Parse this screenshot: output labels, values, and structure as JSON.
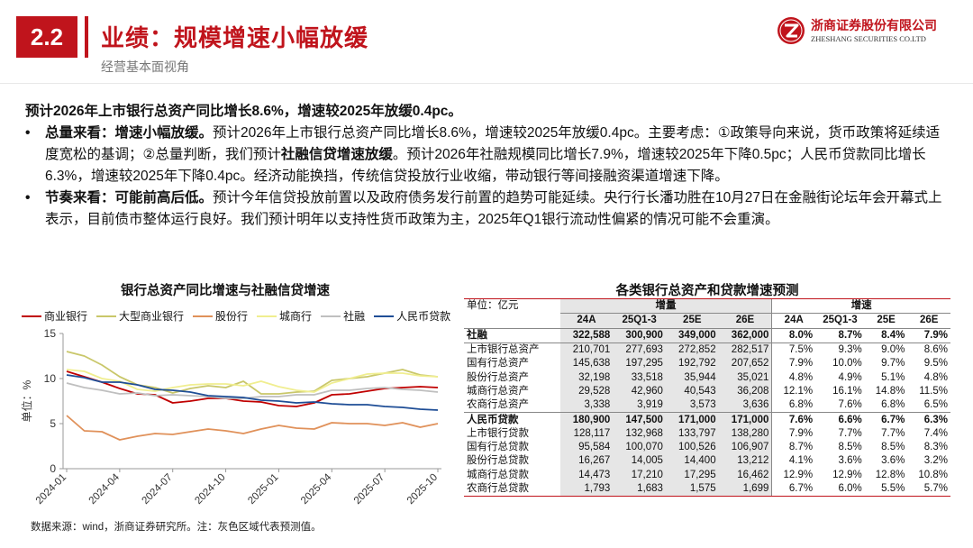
{
  "header": {
    "section_number": "2.2",
    "title": "业绩：规模增速小幅放缓",
    "subtitle": "经营基本面视角",
    "logo_cn": "浙商证券股份有限公司",
    "logo_en": "ZHESHANG SECURITIES CO.LTD"
  },
  "body": {
    "lead": "预计2026年上市银行总资产同比增长8.6%，增速较2025年放缓0.4pc。",
    "bullet1": {
      "head": "总量来看：增速小幅放缓。",
      "t1": "预计2026年上市银行总资产同比增长8.6%，增速较2025年放缓0.4pc。主要考虑：①政策导向来说，货币政策将延续适度宽松的基调；②总量判断，我们预计",
      "em": "社融信贷增速放缓",
      "t2": "。预计2026年社融规模同比增长7.9%，增速较2025年下降0.5pc；人民币贷款同比增长6.3%，增速较2025年下降0.4pc。经济动能换挡，传统信贷投放行业收缩，带动银行等间接融资渠道增速下降。"
    },
    "bullet2": {
      "head": "节奏来看：可能前高后低。",
      "t1": "预计今年信贷投放前置以及政府债务发行前置的趋势可能延续。央行行长潘功胜在10月27日在金融街论坛年会开幕式上表示，目前债市整体运行良好。我们预计明年以支持性货币政策为主，2025年Q1银行流动性偏紧的情况可能不会重演。"
    }
  },
  "chart_data": {
    "type": "line",
    "title": "银行总资产同比增速与社融信贷增速",
    "ylabel": "单位：%",
    "ylim": [
      0,
      15
    ],
    "yticks": [
      0,
      5,
      10,
      15
    ],
    "x": [
      "2024-01",
      "2024-02",
      "2024-03",
      "2024-04",
      "2024-05",
      "2024-06",
      "2024-07",
      "2024-08",
      "2024-09",
      "2024-10",
      "2024-11",
      "2024-12",
      "2025-01",
      "2025-02",
      "2025-03",
      "2025-04",
      "2025-05",
      "2025-06",
      "2025-07",
      "2025-08",
      "2025-09",
      "2025-10"
    ],
    "xticks": [
      "2024-01",
      "2024-04",
      "2024-07",
      "2024-10",
      "2025-01",
      "2025-04",
      "2025-07",
      "2025-10"
    ],
    "series": [
      {
        "name": "商业银行",
        "color": "#c00000",
        "values": [
          10.8,
          10.2,
          9.6,
          8.9,
          8.3,
          8.2,
          7.3,
          7.5,
          7.8,
          7.8,
          7.5,
          7.4,
          7.0,
          6.9,
          7.3,
          8.2,
          8.3,
          8.6,
          8.9,
          9.0,
          9.1,
          9.0
        ]
      },
      {
        "name": "大型商业银行",
        "color": "#c9c76a",
        "values": [
          13.0,
          12.5,
          11.5,
          10.2,
          9.3,
          9.0,
          8.4,
          8.9,
          9.2,
          9.0,
          9.7,
          8.3,
          8.3,
          8.5,
          8.6,
          9.8,
          10.0,
          10.2,
          10.6,
          11.0,
          10.4,
          10.2
        ]
      },
      {
        "name": "股份行",
        "color": "#e0915a",
        "values": [
          5.9,
          4.2,
          4.1,
          3.2,
          3.6,
          3.9,
          3.8,
          4.1,
          4.4,
          4.2,
          3.9,
          4.4,
          4.8,
          4.5,
          4.4,
          5.1,
          5.0,
          5.0,
          4.8,
          5.1,
          4.6,
          5.0
        ]
      },
      {
        "name": "城商行",
        "color": "#f0ee90",
        "values": [
          11.0,
          10.8,
          10.0,
          9.7,
          8.8,
          8.6,
          9.0,
          9.3,
          9.4,
          9.4,
          9.2,
          9.7,
          9.1,
          8.7,
          8.5,
          9.5,
          10.0,
          10.5,
          10.6,
          10.6,
          10.3,
          10.2
        ]
      },
      {
        "name": "社融",
        "color": "#bfbfbf",
        "values": [
          9.5,
          9.0,
          8.7,
          8.3,
          8.4,
          8.1,
          8.2,
          8.1,
          8.0,
          7.8,
          7.8,
          8.0,
          8.0,
          8.2,
          8.2,
          8.7,
          8.7,
          8.9,
          9.0,
          8.8,
          8.7,
          8.5
        ]
      },
      {
        "name": "人民币贷款",
        "color": "#1f4e96",
        "values": [
          10.4,
          10.1,
          9.6,
          9.6,
          9.3,
          8.8,
          8.7,
          8.5,
          8.1,
          8.0,
          7.9,
          7.6,
          7.5,
          7.3,
          7.4,
          7.2,
          7.1,
          7.1,
          6.9,
          6.8,
          6.6,
          6.5
        ]
      }
    ]
  },
  "footnote": "数据来源：wind，浙商证券研究所。注：灰色区域代表预测值。",
  "table": {
    "title": "各类银行总资产和贷款增速预测",
    "unit": "单位：亿元",
    "group1": "增量",
    "group2": "增速",
    "cols": [
      "24A",
      "25Q1-3",
      "25E",
      "26E",
      "24A",
      "25Q1-3",
      "25E",
      "26E"
    ],
    "rows": [
      {
        "label": "社融",
        "cells": [
          "322,588",
          "300,900",
          "349,000",
          "362,000",
          "8.0%",
          "8.7%",
          "8.4%",
          "7.9%"
        ]
      },
      {
        "label": "上市银行总资产",
        "cells": [
          "210,701",
          "277,693",
          "272,852",
          "282,517",
          "7.5%",
          "9.3%",
          "9.0%",
          "8.6%"
        ]
      },
      {
        "label": "国有行总资产",
        "cells": [
          "145,638",
          "197,295",
          "192,792",
          "207,652",
          "7.9%",
          "10.0%",
          "9.7%",
          "9.5%"
        ]
      },
      {
        "label": "股份行总资产",
        "cells": [
          "32,198",
          "33,518",
          "35,944",
          "35,021",
          "4.8%",
          "4.9%",
          "5.1%",
          "4.8%"
        ]
      },
      {
        "label": "城商行总资产",
        "cells": [
          "29,528",
          "42,960",
          "40,543",
          "36,208",
          "12.1%",
          "16.1%",
          "14.8%",
          "11.5%"
        ]
      },
      {
        "label": "农商行总资产",
        "cells": [
          "3,338",
          "3,919",
          "3,573",
          "3,636",
          "6.8%",
          "7.6%",
          "6.8%",
          "6.5%"
        ]
      },
      {
        "label": "人民币贷款",
        "cells": [
          "180,900",
          "147,500",
          "171,000",
          "171,000",
          "7.6%",
          "6.6%",
          "6.7%",
          "6.3%"
        ]
      },
      {
        "label": "上市银行贷款",
        "cells": [
          "128,117",
          "132,968",
          "133,797",
          "138,280",
          "7.9%",
          "7.7%",
          "7.7%",
          "7.4%"
        ]
      },
      {
        "label": "国有行总贷款",
        "cells": [
          "95,584",
          "100,070",
          "100,526",
          "106,907",
          "8.7%",
          "8.5%",
          "8.5%",
          "8.3%"
        ]
      },
      {
        "label": "股份行总贷款",
        "cells": [
          "16,267",
          "14,005",
          "14,400",
          "13,212",
          "4.1%",
          "3.6%",
          "3.6%",
          "3.2%"
        ]
      },
      {
        "label": "城商行总贷款",
        "cells": [
          "14,473",
          "17,210",
          "17,295",
          "16,462",
          "12.9%",
          "12.9%",
          "12.8%",
          "10.8%"
        ]
      },
      {
        "label": "农商行总贷款",
        "cells": [
          "1,793",
          "1,683",
          "1,575",
          "1,699",
          "6.7%",
          "6.0%",
          "5.5%",
          "5.7%"
        ]
      }
    ]
  }
}
